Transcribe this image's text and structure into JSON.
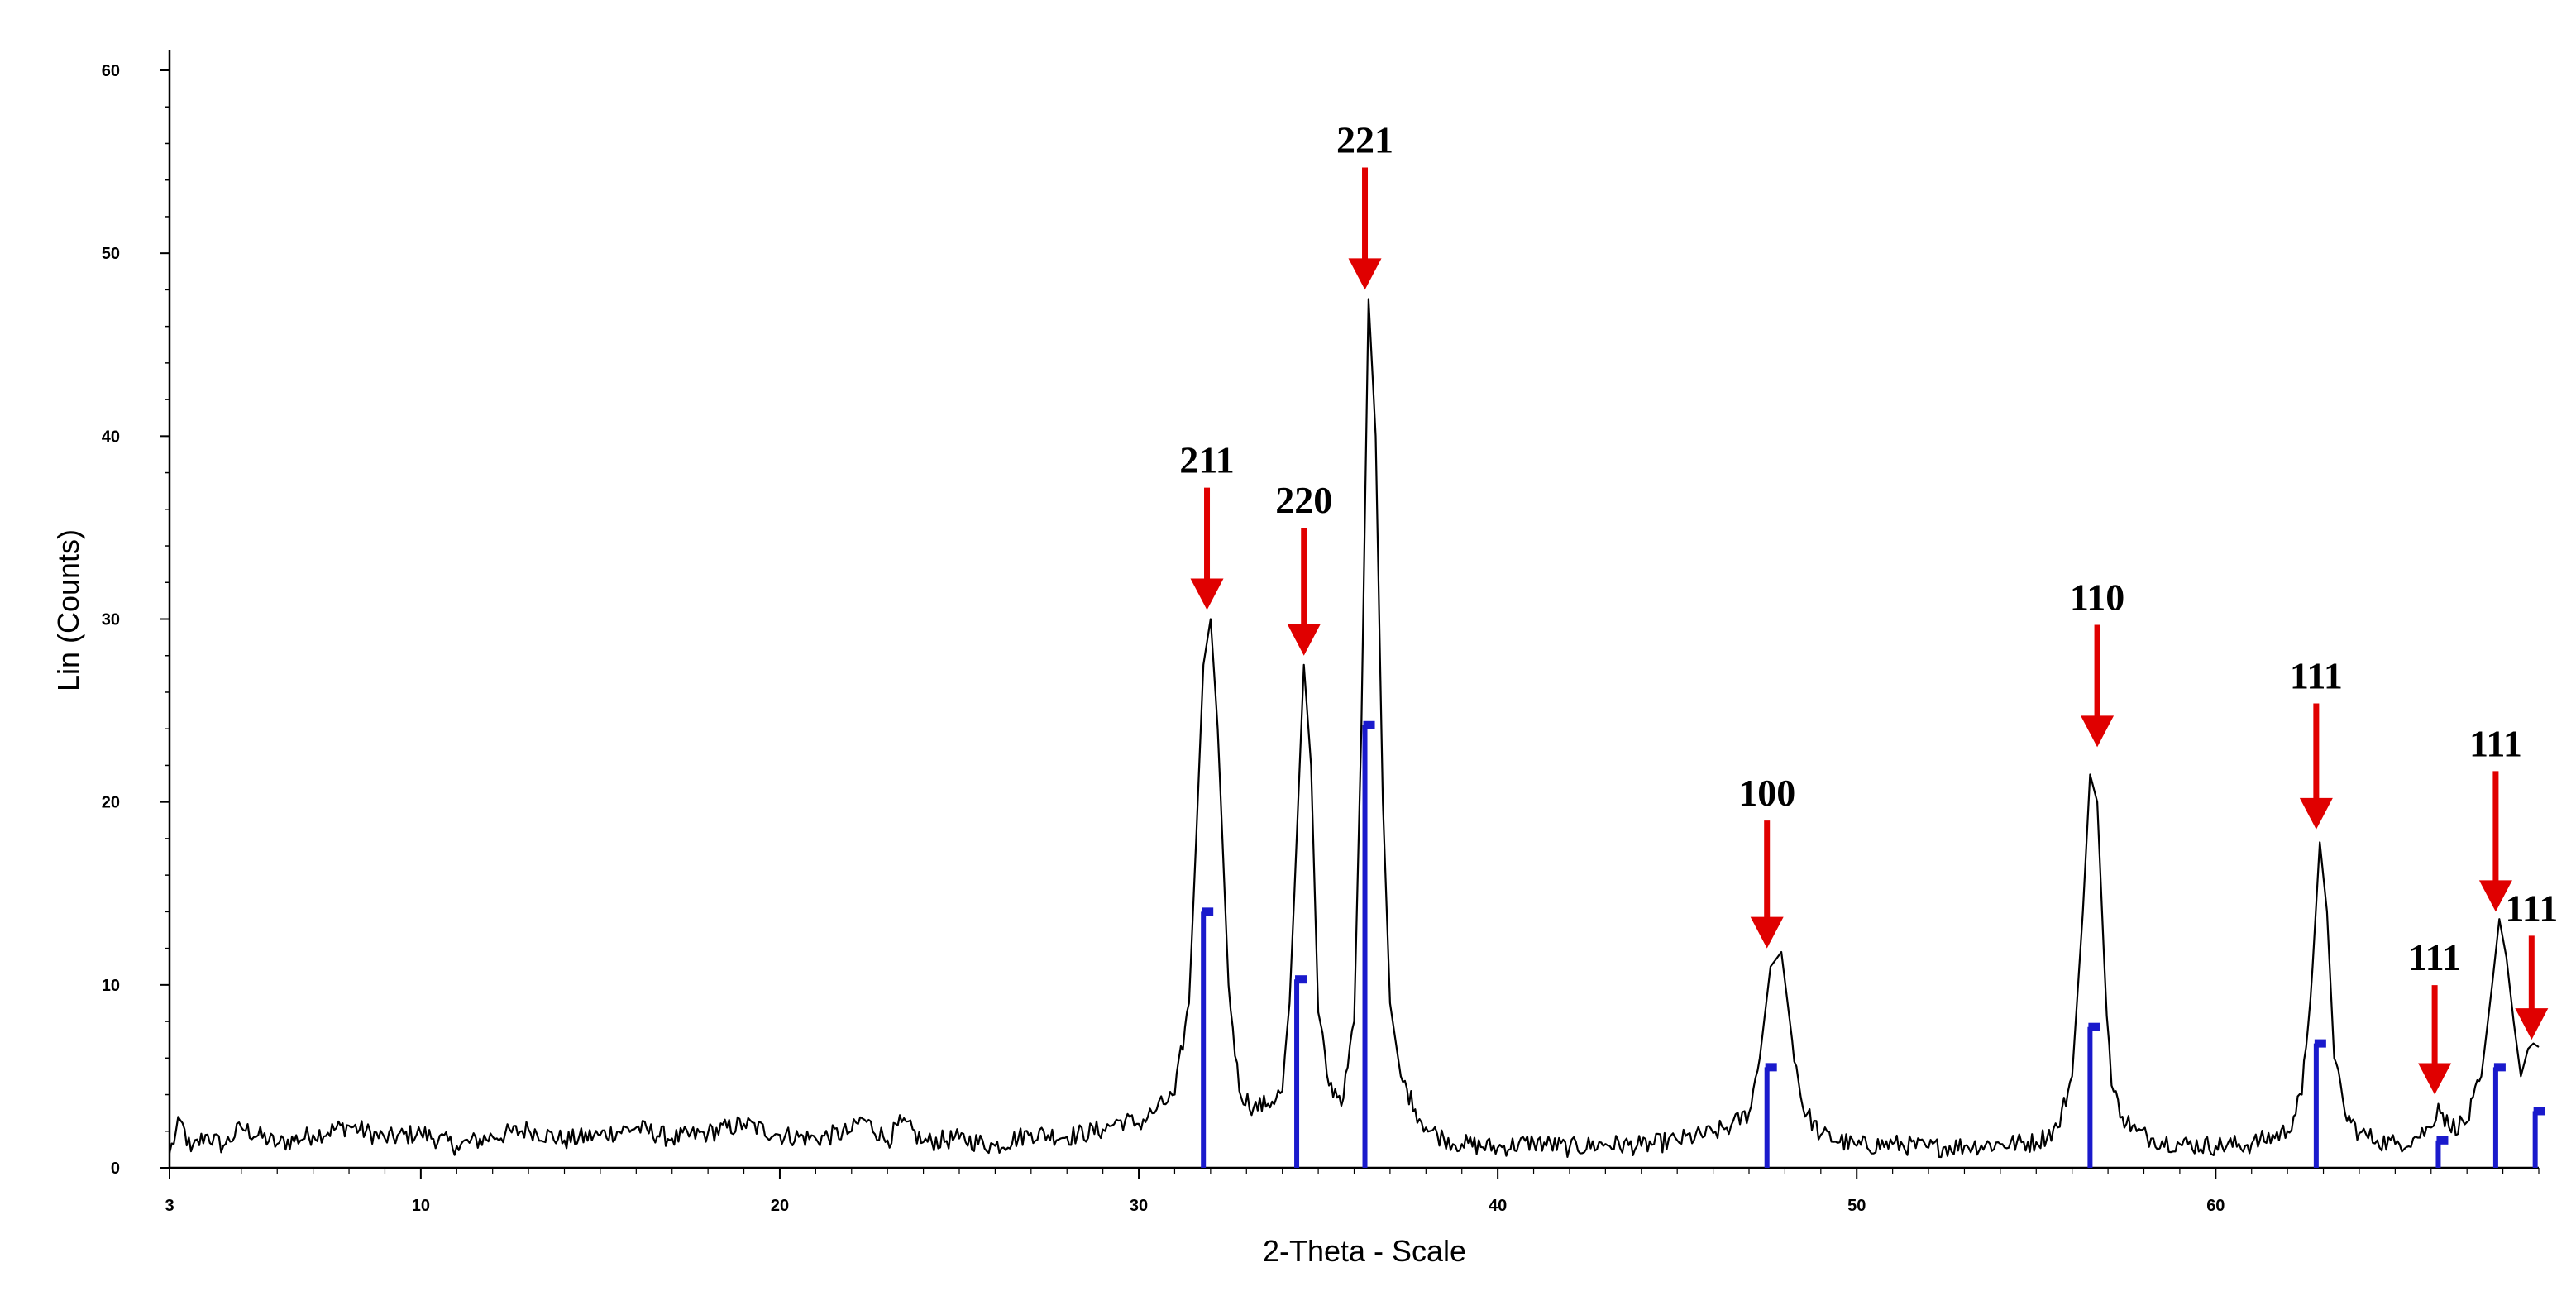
{
  "chart_data": {
    "type": "line",
    "title": "",
    "xlabel": "2-Theta - Scale",
    "ylabel": "Lin (Counts)",
    "xlim": [
      3,
      69
    ],
    "ylim": [
      0,
      60
    ],
    "x_ticks": [
      3,
      10,
      20,
      30,
      40,
      50,
      60
    ],
    "y_ticks": [
      0,
      10,
      20,
      30,
      40,
      50,
      60
    ],
    "grid": false,
    "series": [
      {
        "color": "#000000",
        "x": [
          3.0,
          3.3,
          3.6,
          4.0,
          4.5,
          5.0,
          6.0,
          7.0,
          8.0,
          9.0,
          10.0,
          11.0,
          12.0,
          13.0,
          14.0,
          15.0,
          16.0,
          17.0,
          18.0,
          19.0,
          20.0,
          21.0,
          22.0,
          22.3,
          23.0,
          23.4,
          24.0,
          25.0,
          26.0,
          27.0,
          28.0,
          29.0,
          29.5,
          30.0,
          30.5,
          31.0,
          31.4,
          31.6,
          31.8,
          32.0,
          32.2,
          32.5,
          32.8,
          33.2,
          33.6,
          34.0,
          34.2,
          34.4,
          34.6,
          34.8,
          35.0,
          35.3,
          35.7,
          36.0,
          36.2,
          36.4,
          36.6,
          36.8,
          37.0,
          37.3,
          37.7,
          38.0,
          38.5,
          39.0,
          40.0,
          41.0,
          42.0,
          43.0,
          44.0,
          45.0,
          46.0,
          46.5,
          47.0,
          47.3,
          47.6,
          47.9,
          48.2,
          48.5,
          49.0,
          50.0,
          51.0,
          52.0,
          53.0,
          54.0,
          55.0,
          55.6,
          56.0,
          56.3,
          56.5,
          56.7,
          56.9,
          57.1,
          57.4,
          57.8,
          58.2,
          59.0,
          60.0,
          61.0,
          62.0,
          62.4,
          62.7,
          62.9,
          63.1,
          63.3,
          63.6,
          64.0,
          64.5,
          65.0,
          65.5,
          66.0,
          66.2,
          66.5,
          67.0,
          67.4,
          67.7,
          67.9,
          68.1,
          68.3,
          68.5,
          68.7,
          68.85,
          69.0
        ],
        "y": [
          0.8,
          2.6,
          0.9,
          1.8,
          1.2,
          2.2,
          1.3,
          1.8,
          2.3,
          1.6,
          1.9,
          1.2,
          1.7,
          2.1,
          1.5,
          1.8,
          2.2,
          1.6,
          1.9,
          2.4,
          1.8,
          1.6,
          2.0,
          2.7,
          1.5,
          2.5,
          1.4,
          1.6,
          1.2,
          1.9,
          1.7,
          2.1,
          2.6,
          2.4,
          3.2,
          4.0,
          9.0,
          18.0,
          27.5,
          30.0,
          24.0,
          10.0,
          4.2,
          3.3,
          3.5,
          4.2,
          9.0,
          18.0,
          27.5,
          22.0,
          8.5,
          4.5,
          3.8,
          8.0,
          24.0,
          47.5,
          40.0,
          20.0,
          9.0,
          5.0,
          3.2,
          2.2,
          1.6,
          1.3,
          1.1,
          1.4,
          1.1,
          1.3,
          1.2,
          1.5,
          1.9,
          2.3,
          3.0,
          6.0,
          11.0,
          11.8,
          7.0,
          3.3,
          1.8,
          1.2,
          1.3,
          1.1,
          1.2,
          1.3,
          1.4,
          2.2,
          5.0,
          14.0,
          21.5,
          20.0,
          11.0,
          4.5,
          2.8,
          2.0,
          1.6,
          1.3,
          1.2,
          1.3,
          2.0,
          4.0,
          11.0,
          17.8,
          14.0,
          6.0,
          3.0,
          1.9,
          1.5,
          1.3,
          1.6,
          2.2,
          3.5,
          2.2,
          2.5,
          5.0,
          10.0,
          13.6,
          11.5,
          8.0,
          5.0,
          6.5,
          6.8,
          6.6
        ]
      }
    ],
    "reference_lines": {
      "color": "#1a1acc",
      "x": [
        31.8,
        34.4,
        36.3,
        47.5,
        56.5,
        62.8,
        66.2,
        67.8,
        68.9
      ],
      "height": [
        14.0,
        10.3,
        24.2,
        5.5,
        7.7,
        6.8,
        1.5,
        5.5,
        3.1
      ]
    },
    "annotations": {
      "arrow_color": "#e00000",
      "items": [
        {
          "text": "211",
          "x": 31.9,
          "tip_y": 30.5,
          "label_y": 38.0
        },
        {
          "text": "220",
          "x": 34.6,
          "tip_y": 28.0,
          "label_y": 35.8
        },
        {
          "text": "221",
          "x": 36.3,
          "tip_y": 48.0,
          "label_y": 55.5
        },
        {
          "text": "100",
          "x": 47.5,
          "tip_y": 12.0,
          "label_y": 19.8
        },
        {
          "text": "110",
          "x": 56.7,
          "tip_y": 23.0,
          "label_y": 30.5
        },
        {
          "text": "111",
          "x": 62.8,
          "tip_y": 18.5,
          "label_y": 26.2
        },
        {
          "text": "111",
          "x": 66.1,
          "tip_y": 4.0,
          "label_y": 10.8
        },
        {
          "text": "111",
          "x": 67.8,
          "tip_y": 14.0,
          "label_y": 22.5
        },
        {
          "text": "111",
          "x": 68.8,
          "tip_y": 7.0,
          "label_y": 13.5
        }
      ]
    }
  }
}
